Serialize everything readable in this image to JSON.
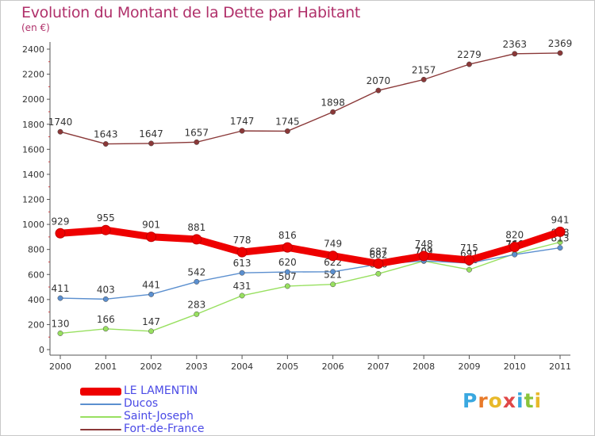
{
  "title": "Evolution du Montant de la Dette par Habitant",
  "subtitle": "(en €)",
  "logo_letters": [
    "P",
    "r",
    "o",
    "x",
    "i",
    "t",
    "i"
  ],
  "logo_colors": [
    "#3aa8e0",
    "#e87a2a",
    "#e8b92a",
    "#e04848",
    "#3aa8e0",
    "#8ac43a",
    "#e8b92a"
  ],
  "chart_data": {
    "type": "line",
    "categories": [
      "2000",
      "2001",
      "2002",
      "2003",
      "2004",
      "2005",
      "2006",
      "2007",
      "2008",
      "2009",
      "2010",
      "2011"
    ],
    "ylim": [
      0,
      2400
    ],
    "yticks": [
      "0",
      "200",
      "400",
      "600",
      "800",
      "1000",
      "1200",
      "1400",
      "1600",
      "1800",
      "2000",
      "2200",
      "2400"
    ],
    "grid": false,
    "legend_position": "bottom-left",
    "series": [
      {
        "name": "LE LAMENTIN",
        "color": "#ee0000",
        "values": [
          929,
          955,
          901,
          881,
          778,
          816,
          749,
          687,
          748,
          715,
          820,
          941
        ],
        "labels": [
          "929",
          "955",
          "901",
          "881",
          "778",
          "816",
          "749",
          "687",
          "748",
          "715",
          "820",
          "941"
        ]
      },
      {
        "name": "Ducos",
        "color": "#5b8fcf",
        "values": [
          411,
          403,
          441,
          542,
          613,
          620,
          622,
          682,
          709,
          691,
          759,
          813
        ],
        "labels": [
          "411",
          "403",
          "441",
          "542",
          "613",
          "620",
          "622",
          "682",
          "709",
          "691",
          "759",
          "813"
        ]
      },
      {
        "name": "Saint-Joseph",
        "color": "#98e060",
        "values": [
          130,
          166,
          147,
          283,
          431,
          507,
          521,
          606,
          707,
          638,
          766,
          858
        ],
        "labels": [
          "130",
          "166",
          "147",
          "283",
          "431",
          "507",
          "521",
          "606",
          "707",
          "638",
          "766",
          "858"
        ]
      },
      {
        "name": "Fort-de-France",
        "color": "#8a3838",
        "values": [
          1740,
          1643,
          1647,
          1657,
          1747,
          1745,
          1898,
          2070,
          2157,
          2279,
          2363,
          2369
        ],
        "labels": [
          "1740",
          "1643",
          "1647",
          "1657",
          "1747",
          "1745",
          "1898",
          "2070",
          "2157",
          "2279",
          "2363",
          "2369"
        ]
      }
    ]
  }
}
